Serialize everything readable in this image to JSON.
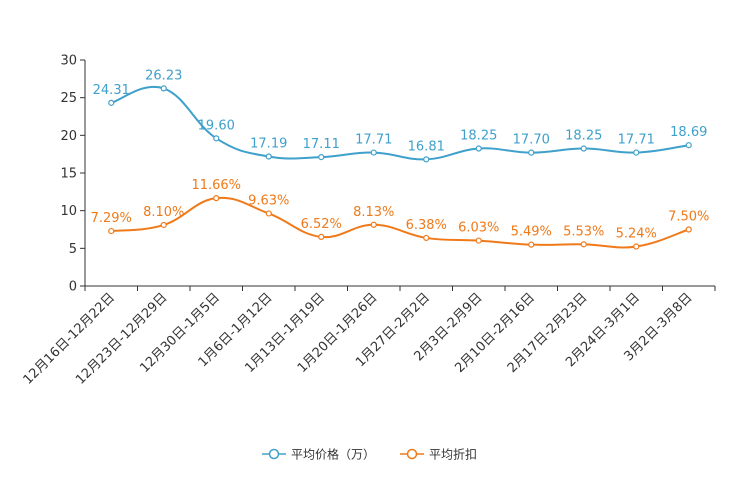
{
  "chart_data": {
    "type": "line",
    "title": "",
    "xlabel": "",
    "ylabel": "",
    "ylim": [
      0,
      30
    ],
    "yticks": [
      0,
      5,
      10,
      15,
      20,
      25,
      30
    ],
    "grid": false,
    "legend_position": "bottom-center",
    "categories": [
      "12月16日-12月22日",
      "12月23日-12月29日",
      "12月30日-1月5日",
      "1月6日-1月12日",
      "1月13日-1月19日",
      "1月20日-1月26日",
      "1月27日-2月2日",
      "2月3日-2月9日",
      "2月10日-2月16日",
      "2月17日-2月23日",
      "2月24日-3月1日",
      "3月2日-3月8日"
    ],
    "series": [
      {
        "name": "平均价格（万）",
        "color": "#3ea0cb",
        "values": [
          24.31,
          26.23,
          19.6,
          17.19,
          17.11,
          17.71,
          16.81,
          18.25,
          17.7,
          18.25,
          17.71,
          18.69
        ],
        "labels": [
          "24.31",
          "26.23",
          "19.60",
          "17.19",
          "17.11",
          "17.71",
          "16.81",
          "18.25",
          "17.70",
          "18.25",
          "17.71",
          "18.69"
        ]
      },
      {
        "name": "平均折扣",
        "color": "#f07a1a",
        "values": [
          7.29,
          8.1,
          11.66,
          9.63,
          6.52,
          8.13,
          6.38,
          6.03,
          5.49,
          5.53,
          5.24,
          7.5
        ],
        "labels": [
          "7.29%",
          "8.10%",
          "11.66%",
          "9.63%",
          "6.52%",
          "8.13%",
          "6.38%",
          "6.03%",
          "5.49%",
          "5.53%",
          "5.24%",
          "7.50%"
        ]
      }
    ]
  }
}
